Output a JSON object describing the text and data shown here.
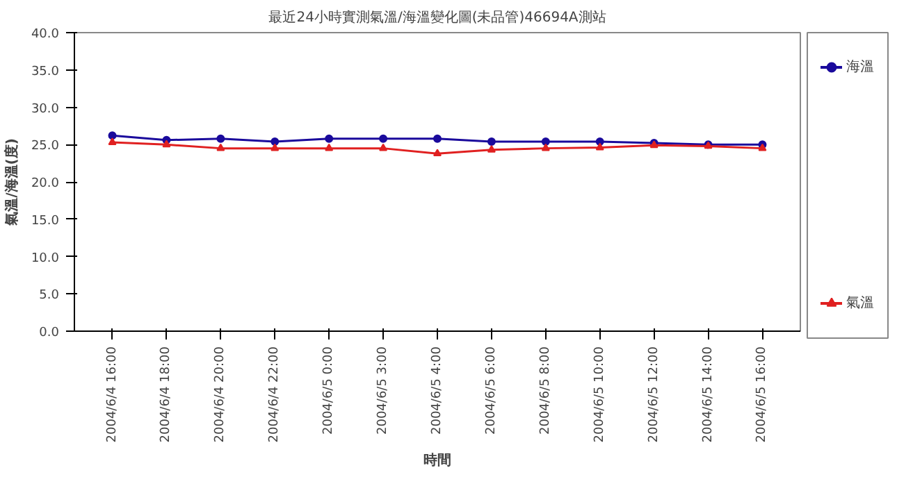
{
  "chart_data": {
    "type": "line",
    "title": "最近24小時實測氣溫/海溫變化圖(未品管)46694A測站",
    "xlabel": "時間",
    "ylabel": "氣溫/海溫(度)",
    "categories": [
      "2004/6/4 16:00",
      "2004/6/4 18:00",
      "2004/6/4 20:00",
      "2004/6/4 22:00",
      "2004/6/5 0:00",
      "2004/6/5 3:00",
      "2004/6/5 4:00",
      "2004/6/5 6:00",
      "2004/6/5 8:00",
      "2004/6/5 10:00",
      "2004/6/5 12:00",
      "2004/6/5 14:00",
      "2004/6/5 16:00"
    ],
    "series": [
      {
        "name": "海溫",
        "color": "#1a0a9c",
        "marker": "circle",
        "values": [
          26.2,
          25.6,
          25.8,
          25.4,
          25.8,
          25.8,
          25.8,
          25.4,
          25.4,
          25.4,
          25.2,
          25.0,
          25.0
        ]
      },
      {
        "name": "氣溫",
        "color": "#e02020",
        "marker": "triangle",
        "values": [
          25.3,
          25.0,
          24.5,
          24.5,
          24.5,
          24.5,
          23.8,
          24.3,
          24.5,
          24.6,
          24.9,
          24.8,
          24.5
        ]
      }
    ],
    "ylim": [
      0,
      40
    ],
    "yticks": [
      {
        "value": 0,
        "label": "0.0"
      },
      {
        "value": 5,
        "label": "5.0"
      },
      {
        "value": 10,
        "label": "10.0"
      },
      {
        "value": 15,
        "label": "15.0"
      },
      {
        "value": 20,
        "label": "20.0"
      },
      {
        "value": 25,
        "label": "25.0"
      },
      {
        "value": 30,
        "label": "30.0"
      },
      {
        "value": 35,
        "label": "35.0"
      },
      {
        "value": 40,
        "label": "40.0"
      }
    ],
    "grid": false,
    "legend": "right",
    "line_style": "solid"
  }
}
